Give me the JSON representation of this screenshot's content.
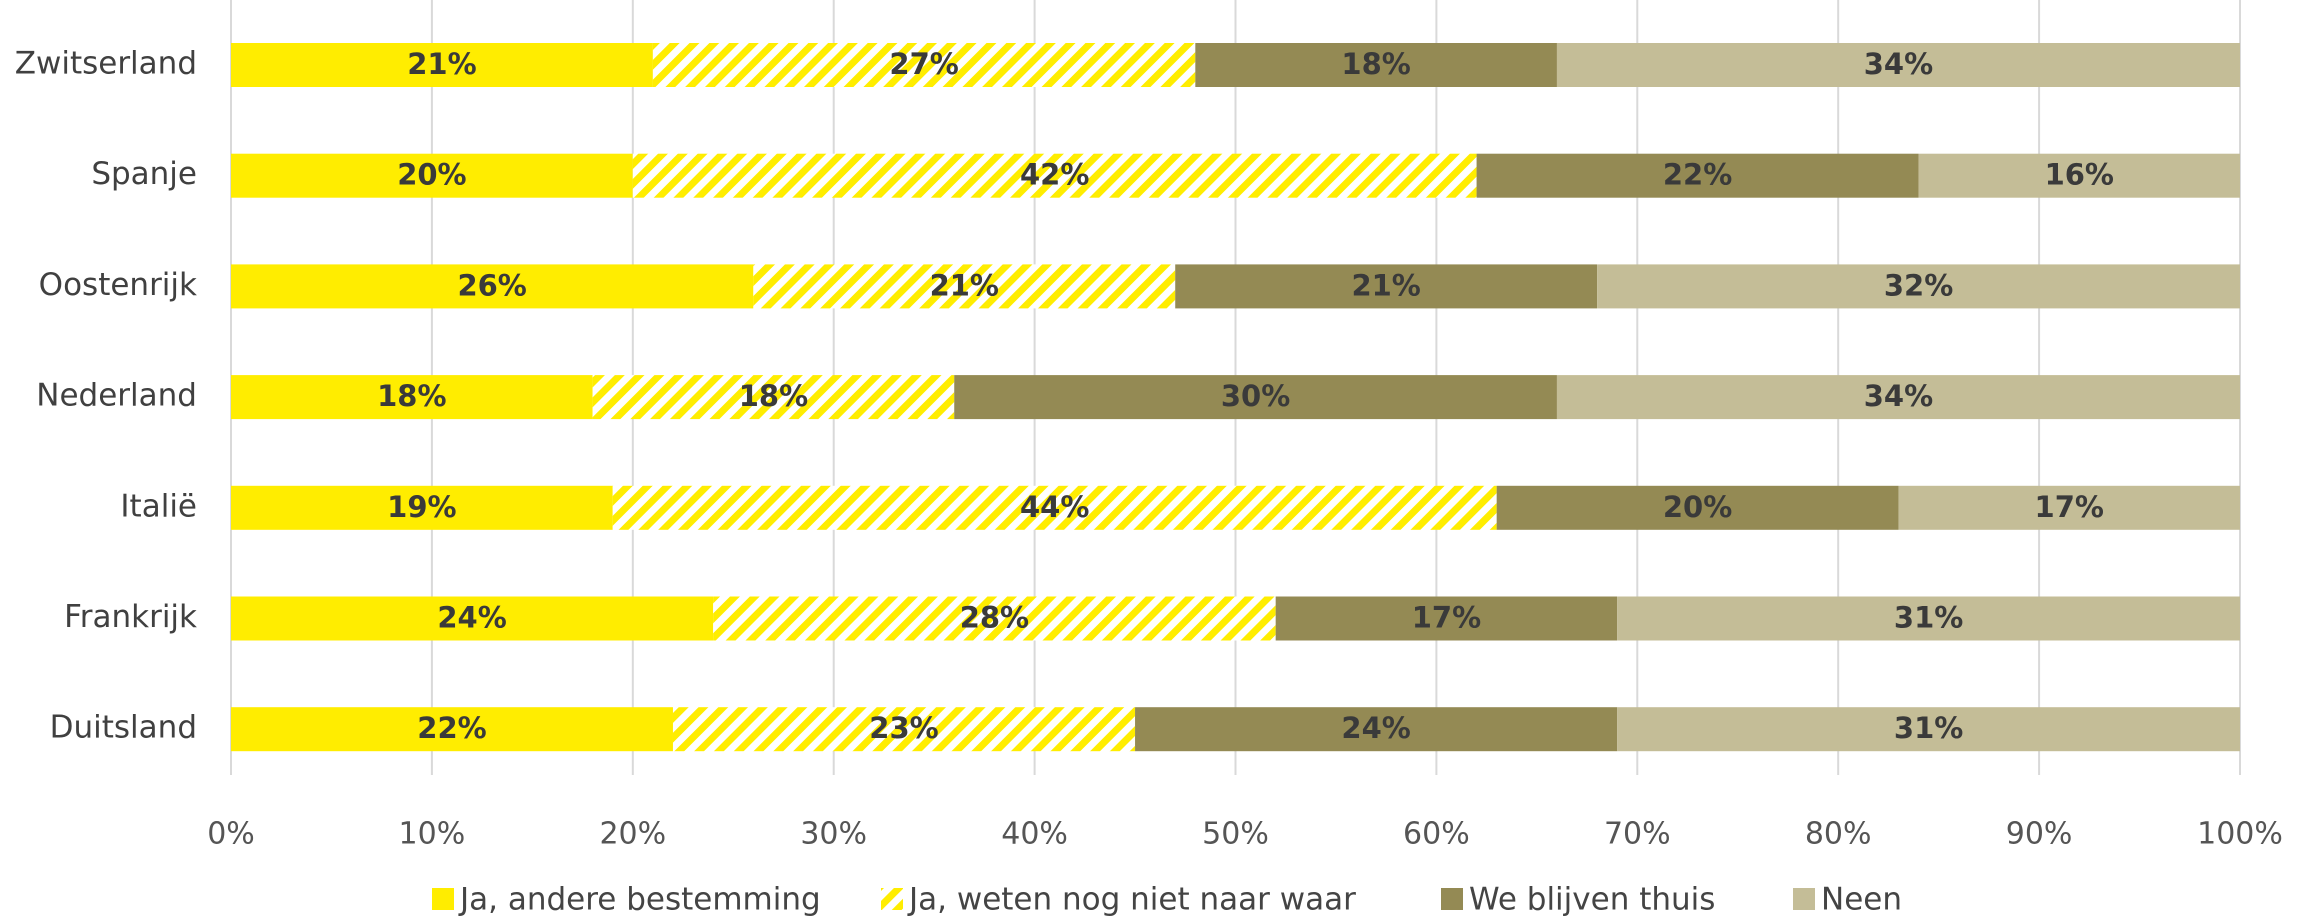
{
  "chart_data": {
    "type": "stacked_bar_horizontal",
    "categories": [
      "Zwitserland",
      "Spanje",
      "Oostenrijk",
      "Nederland",
      "Italië",
      "Frankrijk",
      "Duitsland"
    ],
    "series": [
      {
        "name": "Ja, andere bestemming",
        "color": "#ffed00",
        "values": [
          21,
          20,
          26,
          18,
          19,
          24,
          22
        ],
        "value_labels": [
          "21%",
          "20%",
          "26%",
          "18%",
          "19%",
          "24%",
          "22%"
        ]
      },
      {
        "name": "Ja, weten nog niet naar waar",
        "color": "#ffed00",
        "pattern": "hatch",
        "values": [
          27,
          42,
          21,
          18,
          44,
          28,
          23
        ],
        "value_labels": [
          "27%",
          "42%",
          "21%",
          "18%",
          "44%",
          "28%",
          "23%"
        ]
      },
      {
        "name": "We blijven thuis",
        "color": "#948a54",
        "values": [
          18,
          22,
          21,
          30,
          20,
          17,
          24
        ],
        "value_labels": [
          "18%",
          "22%",
          "21%",
          "30%",
          "20%",
          "17%",
          "24%"
        ]
      },
      {
        "name": "Neen",
        "color": "#c4bd97",
        "values": [
          34,
          16,
          32,
          34,
          17,
          31,
          31
        ],
        "value_labels": [
          "34%",
          "16%",
          "32%",
          "34%",
          "17%",
          "31%",
          "31%"
        ]
      }
    ],
    "xlim": [
      0,
      100
    ],
    "xticks": [
      {
        "value": 0,
        "label": "0%"
      },
      {
        "value": 10,
        "label": "10%"
      },
      {
        "value": 20,
        "label": "20%"
      },
      {
        "value": 30,
        "label": "30%"
      },
      {
        "value": 40,
        "label": "40%"
      },
      {
        "value": 50,
        "label": "50%"
      },
      {
        "value": 60,
        "label": "60%"
      },
      {
        "value": 70,
        "label": "70%"
      },
      {
        "value": 80,
        "label": "80%"
      },
      {
        "value": 90,
        "label": "90%"
      },
      {
        "value": 100,
        "label": "100%"
      }
    ],
    "grid": true,
    "legend": "bottom"
  }
}
